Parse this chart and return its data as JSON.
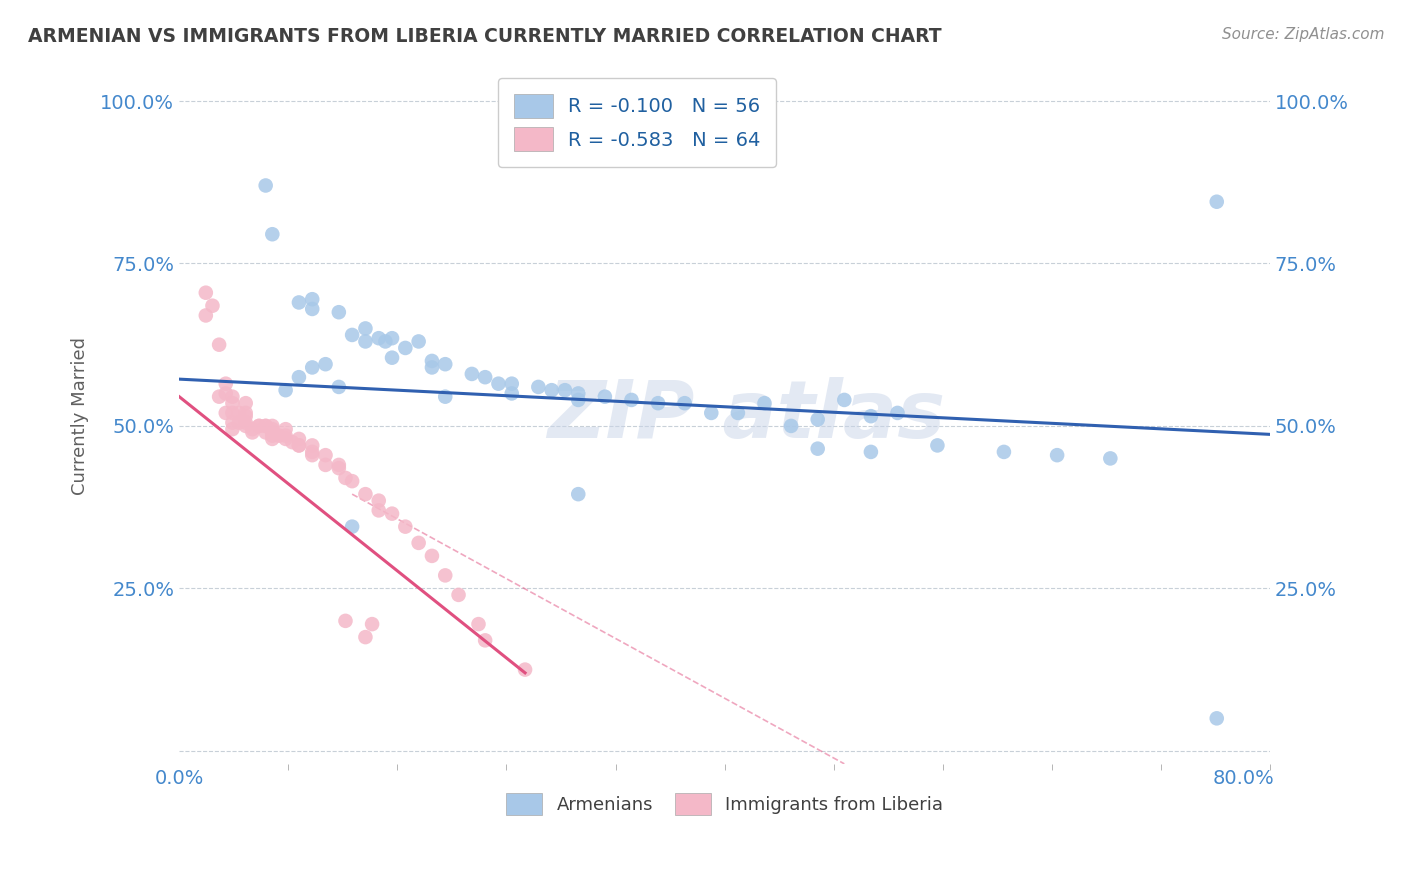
{
  "title": "ARMENIAN VS IMMIGRANTS FROM LIBERIA CURRENTLY MARRIED CORRELATION CHART",
  "source": "Source: ZipAtlas.com",
  "ylabel": "Currently Married",
  "xmin": 0.0,
  "xmax": 0.82,
  "ymin": -0.02,
  "ymax": 1.05,
  "legend_r1": "R = -0.100",
  "legend_n1": "N = 56",
  "legend_r2": "R = -0.583",
  "legend_n2": "N = 64",
  "blue_color": "#a8c8e8",
  "pink_color": "#f4b8c8",
  "blue_line_color": "#3060b0",
  "pink_line_color": "#e05080",
  "blue_line_x": [
    0.0,
    0.82
  ],
  "blue_line_y": [
    0.572,
    0.487
  ],
  "pink_line_x": [
    0.0,
    0.26
  ],
  "pink_line_y": [
    0.545,
    0.12
  ],
  "dash_line_x": [
    0.13,
    0.5
  ],
  "dash_line_y": [
    0.395,
    -0.02
  ],
  "bg_color": "#ffffff",
  "grid_color": "#c8d0d8",
  "title_color": "#404040",
  "axis_label_color": "#606060",
  "tick_color": "#4488cc",
  "source_color": "#909090",
  "blue_scatter_x": [
    0.065,
    0.07,
    0.09,
    0.1,
    0.1,
    0.12,
    0.13,
    0.14,
    0.14,
    0.15,
    0.155,
    0.16,
    0.17,
    0.18,
    0.19,
    0.19,
    0.2,
    0.22,
    0.23,
    0.24,
    0.25,
    0.27,
    0.28,
    0.29,
    0.3,
    0.32,
    0.34,
    0.36,
    0.38,
    0.4,
    0.42,
    0.44,
    0.46,
    0.48,
    0.5,
    0.52,
    0.54,
    0.3,
    0.48,
    0.52,
    0.57,
    0.62,
    0.66,
    0.7,
    0.13,
    0.78,
    0.08,
    0.09,
    0.1,
    0.11,
    0.12,
    0.16,
    0.2,
    0.25,
    0.3,
    0.78
  ],
  "blue_scatter_y": [
    0.87,
    0.795,
    0.69,
    0.695,
    0.68,
    0.675,
    0.64,
    0.65,
    0.63,
    0.635,
    0.63,
    0.635,
    0.62,
    0.63,
    0.59,
    0.6,
    0.595,
    0.58,
    0.575,
    0.565,
    0.565,
    0.56,
    0.555,
    0.555,
    0.55,
    0.545,
    0.54,
    0.535,
    0.535,
    0.52,
    0.52,
    0.535,
    0.5,
    0.51,
    0.54,
    0.515,
    0.52,
    0.395,
    0.465,
    0.46,
    0.47,
    0.46,
    0.455,
    0.45,
    0.345,
    0.845,
    0.555,
    0.575,
    0.59,
    0.595,
    0.56,
    0.605,
    0.545,
    0.55,
    0.54,
    0.05
  ],
  "pink_scatter_x": [
    0.02,
    0.02,
    0.025,
    0.03,
    0.03,
    0.035,
    0.035,
    0.035,
    0.04,
    0.04,
    0.04,
    0.04,
    0.04,
    0.045,
    0.045,
    0.05,
    0.05,
    0.05,
    0.05,
    0.05,
    0.055,
    0.055,
    0.06,
    0.06,
    0.065,
    0.065,
    0.065,
    0.07,
    0.07,
    0.07,
    0.07,
    0.07,
    0.075,
    0.08,
    0.08,
    0.08,
    0.085,
    0.09,
    0.09,
    0.09,
    0.1,
    0.1,
    0.1,
    0.11,
    0.11,
    0.12,
    0.12,
    0.125,
    0.13,
    0.14,
    0.15,
    0.15,
    0.16,
    0.17,
    0.18,
    0.19,
    0.2,
    0.21,
    0.225,
    0.23,
    0.26,
    0.145,
    0.125,
    0.14
  ],
  "pink_scatter_y": [
    0.705,
    0.67,
    0.685,
    0.625,
    0.545,
    0.565,
    0.55,
    0.52,
    0.545,
    0.535,
    0.52,
    0.505,
    0.495,
    0.52,
    0.505,
    0.535,
    0.515,
    0.52,
    0.505,
    0.5,
    0.495,
    0.49,
    0.5,
    0.5,
    0.5,
    0.5,
    0.49,
    0.5,
    0.495,
    0.49,
    0.485,
    0.48,
    0.485,
    0.495,
    0.485,
    0.48,
    0.475,
    0.48,
    0.47,
    0.47,
    0.47,
    0.46,
    0.455,
    0.455,
    0.44,
    0.44,
    0.435,
    0.42,
    0.415,
    0.395,
    0.385,
    0.37,
    0.365,
    0.345,
    0.32,
    0.3,
    0.27,
    0.24,
    0.195,
    0.17,
    0.125,
    0.195,
    0.2,
    0.175
  ]
}
